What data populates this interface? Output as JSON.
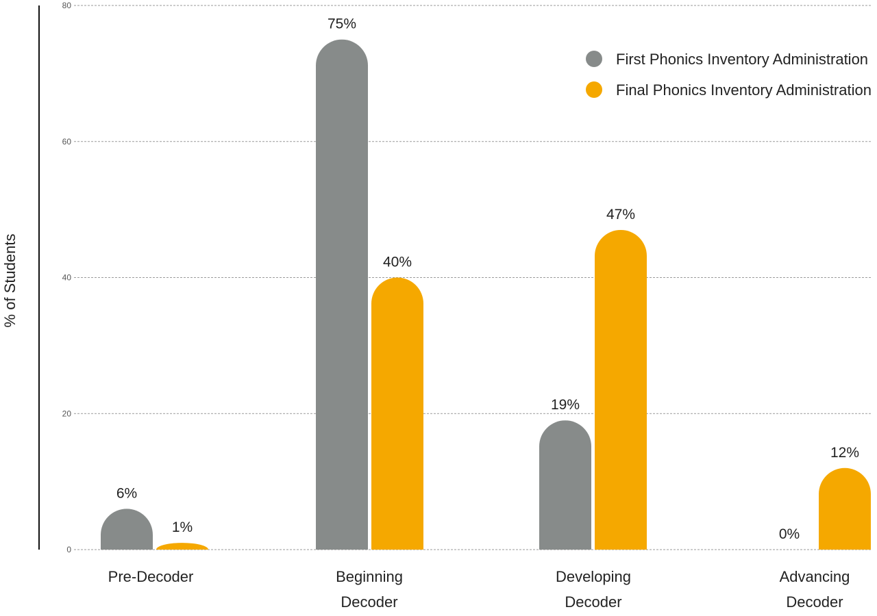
{
  "chart_data": {
    "type": "bar",
    "title": "",
    "xlabel": "",
    "ylabel": "% of Students",
    "ylim": [
      0,
      80
    ],
    "yticks": [
      0,
      20,
      40,
      60,
      80
    ],
    "grid": true,
    "legend_position": "top-right",
    "categories": [
      [
        "Pre-Decoder"
      ],
      [
        "Beginning",
        "Decoder"
      ],
      [
        "Developing",
        "Decoder"
      ],
      [
        "Advancing",
        "Decoder"
      ]
    ],
    "series": [
      {
        "name": "First Phonics Inventory Administration",
        "color": "#878b8a",
        "values": [
          6,
          75,
          19,
          0
        ],
        "labels": [
          "6%",
          "75%",
          "19%",
          "0%"
        ]
      },
      {
        "name": "Final Phonics Inventory Administration",
        "color": "#f5a800",
        "values": [
          1,
          40,
          47,
          12
        ],
        "labels": [
          "1%",
          "40%",
          "47%",
          "12%"
        ]
      }
    ]
  }
}
